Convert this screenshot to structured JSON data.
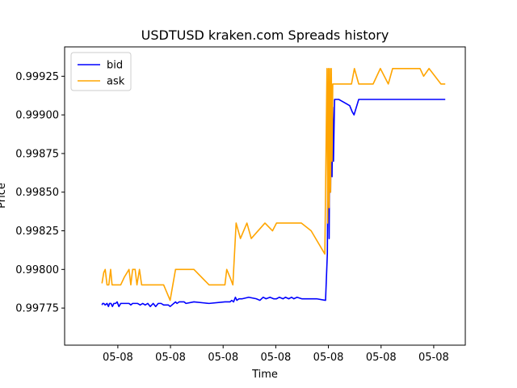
{
  "chart_data": {
    "type": "line",
    "title": "USDTUSD kraken.com Spreads history",
    "xlabel": "Time",
    "ylabel": "Price",
    "xlim": [
      0,
      100
    ],
    "ylim": [
      0.99751,
      0.99944
    ],
    "y_ticks": [
      0.99775,
      0.998,
      0.99825,
      0.9985,
      0.99875,
      0.999,
      0.99925
    ],
    "y_tick_labels": [
      "0.99775",
      "0.99800",
      "0.99825",
      "0.99850",
      "0.99875",
      "0.99900",
      "0.99925"
    ],
    "x_ticks": [
      9.2,
      23.8,
      38.4,
      53.0,
      67.6,
      82.2,
      96.8
    ],
    "x_tick_labels": [
      "05-08",
      "05-08",
      "05-08",
      "05-08",
      "05-08",
      "05-08",
      "05-08"
    ],
    "legend": {
      "placement": "upper-left"
    },
    "grid": false,
    "series": [
      {
        "name": "bid",
        "color": "#0000ff",
        "x": [
          4.8,
          5.0,
          5.3,
          5.7,
          6.2,
          6.6,
          6.9,
          7.3,
          7.7,
          8.1,
          8.6,
          9.0,
          9.5,
          10.0,
          11.0,
          12.3,
          12.8,
          13.3,
          14.0,
          14.7,
          15.4,
          16.1,
          16.8,
          17.5,
          18.2,
          19.0,
          19.7,
          20.4,
          21.2,
          21.9,
          22.6,
          23.2,
          23.7,
          25.2,
          25.6,
          26.2,
          27.6,
          28.1,
          30.3,
          34.5,
          38.9,
          40.3,
          40.8,
          41.3,
          41.8,
          42.2,
          42.8,
          43.7,
          45.5,
          47.6,
          48.6,
          49.5,
          50.3,
          51.4,
          52.4,
          53.2,
          54.0,
          55.0,
          55.7,
          56.6,
          57.4,
          58.0,
          58.9,
          60.2,
          64.3,
          66.8,
          67.3,
          67.6,
          67.8,
          68.0,
          68.2,
          68.4,
          68.6,
          68.8,
          69.0,
          69.3,
          70.0,
          70.5,
          73.5,
          74.2,
          74.7,
          76.0,
          81.5,
          82.0,
          83.0,
          84.0,
          85.5,
          87.0,
          88.5,
          89.5,
          90.5,
          91.0,
          91.5,
          92.0,
          93.0,
          94.5,
          95.5,
          98.8,
          99.2,
          99.6,
          100.0
        ],
        "values": [
          0.99777,
          0.99778,
          0.99778,
          0.99777,
          0.99778,
          0.99776,
          0.99778,
          0.99778,
          0.99776,
          0.99778,
          0.99778,
          0.99779,
          0.99776,
          0.99778,
          0.99778,
          0.99778,
          0.99777,
          0.99778,
          0.99778,
          0.99778,
          0.99777,
          0.99778,
          0.99777,
          0.99778,
          0.99776,
          0.99778,
          0.99776,
          0.99778,
          0.99778,
          0.99777,
          0.99777,
          0.99777,
          0.99776,
          0.99779,
          0.99778,
          0.99779,
          0.99779,
          0.99778,
          0.99779,
          0.99778,
          0.99779,
          0.99779,
          0.9978,
          0.99779,
          0.99782,
          0.9978,
          0.99781,
          0.99781,
          0.99782,
          0.99781,
          0.9978,
          0.99782,
          0.99781,
          0.99782,
          0.99781,
          0.99781,
          0.99782,
          0.99781,
          0.99782,
          0.99781,
          0.99782,
          0.99781,
          0.99782,
          0.99781,
          0.99781,
          0.9978,
          0.9981,
          0.9992,
          0.9982,
          0.999,
          0.9985,
          0.9991,
          0.9986,
          0.99905,
          0.9987,
          0.9991,
          0.9991,
          0.9991,
          0.99906,
          0.99902,
          0.999,
          0.9991,
          0.9991,
          0.9991,
          0.9991,
          0.9991,
          0.9991,
          0.9991,
          0.9991,
          0.9991,
          0.9991,
          0.9991,
          0.9991,
          0.9991,
          0.9991,
          0.9991,
          0.9991,
          0.9991,
          0.9991,
          0.9991,
          0.9991
        ]
      },
      {
        "name": "ask",
        "color": "#ffa500",
        "x": [
          4.8,
          5.3,
          5.7,
          6.2,
          6.7,
          7.2,
          7.6,
          9.5,
          10.0,
          11.0,
          12.3,
          12.8,
          13.3,
          14.0,
          14.5,
          15.2,
          15.8,
          16.5,
          17.0,
          17.6,
          18.3,
          19.2,
          20.1,
          21.0,
          21.9,
          22.8,
          23.7,
          25.2,
          25.6,
          30.3,
          34.5,
          37.8,
          38.9,
          39.4,
          40.3,
          41.1,
          42.0,
          43.2,
          45.0,
          46.2,
          50.0,
          52.1,
          53.2,
          60.1,
          62.8,
          66.6,
          67.2,
          67.4,
          67.6,
          67.8,
          68.0,
          68.2,
          68.4,
          68.6,
          68.8,
          69.3,
          74.0,
          74.8,
          76.0,
          80.0,
          82.0,
          84.2,
          85.4,
          86.5,
          88.0,
          91.0,
          92.0,
          93.0,
          94.0,
          95.5,
          98.8,
          99.5,
          100.0
        ],
        "values": [
          0.99791,
          0.99798,
          0.998,
          0.9979,
          0.9979,
          0.998,
          0.9979,
          0.9979,
          0.9979,
          0.99795,
          0.998,
          0.9979,
          0.998,
          0.998,
          0.9979,
          0.998,
          0.9979,
          0.9979,
          0.9979,
          0.9979,
          0.9979,
          0.9979,
          0.9979,
          0.9979,
          0.9979,
          0.99785,
          0.9978,
          0.998,
          0.998,
          0.998,
          0.9979,
          0.9979,
          0.9979,
          0.998,
          0.99795,
          0.9979,
          0.9983,
          0.9982,
          0.9983,
          0.9982,
          0.9983,
          0.99825,
          0.9983,
          0.9983,
          0.99825,
          0.9981,
          0.9993,
          0.9983,
          0.9993,
          0.9984,
          0.9993,
          0.9985,
          0.9993,
          0.9987,
          0.9992,
          0.9992,
          0.9992,
          0.9993,
          0.9992,
          0.9992,
          0.9993,
          0.9992,
          0.9993,
          0.9993,
          0.9993,
          0.9993,
          0.9993,
          0.9993,
          0.99925,
          0.9993,
          0.9992,
          0.9992,
          0.9992
        ]
      }
    ]
  }
}
